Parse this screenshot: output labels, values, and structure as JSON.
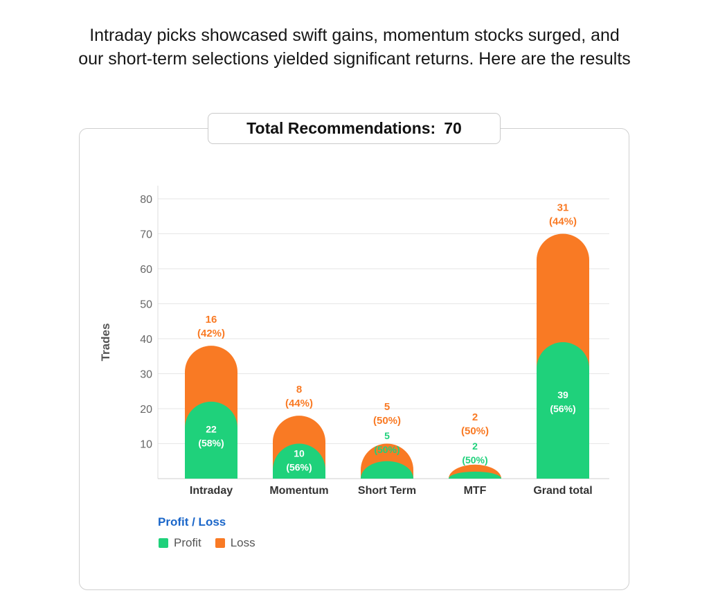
{
  "intro_text": "Intraday picks showcased swift gains, momentum stocks surged, and our short-term selections yielded significant returns. Here are the results",
  "total": {
    "label": "Total Recommendations:",
    "value": "70"
  },
  "colors": {
    "profit": "#1fd17b",
    "loss": "#f97a24",
    "legend_title": "#1a66c9"
  },
  "legend": {
    "title": "Profit / Loss",
    "items": [
      "Profit",
      "Loss"
    ]
  },
  "chart_data": {
    "type": "bar",
    "stacked": true,
    "title": "",
    "xlabel": "",
    "ylabel": "Trades",
    "ylim": [
      0,
      80
    ],
    "yticks": [
      10,
      20,
      30,
      40,
      50,
      60,
      70,
      80
    ],
    "grid": true,
    "legend_position": "bottom-left",
    "categories": [
      "Intraday",
      "Momentum",
      "Short Term",
      "MTF",
      "Grand total"
    ],
    "series": [
      {
        "name": "Profit",
        "values": [
          22,
          10,
          5,
          2,
          39
        ],
        "labels": [
          "22",
          "10",
          "5",
          "2",
          "39"
        ],
        "pct_labels": [
          "(58%)",
          "(56%)",
          "(50%)",
          "(50%)",
          "(56%)"
        ]
      },
      {
        "name": "Loss",
        "values": [
          16,
          8,
          5,
          2,
          31
        ],
        "labels": [
          "16",
          "8",
          "5",
          "2",
          "31"
        ],
        "pct_labels": [
          "(42%)",
          "(44%)",
          "(50%)",
          "(50%)",
          "(44%)"
        ]
      }
    ]
  }
}
